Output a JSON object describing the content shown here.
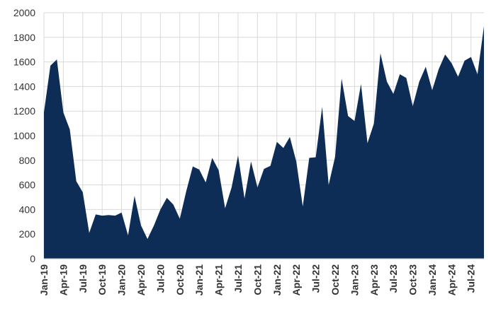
{
  "chart_data": {
    "type": "area",
    "title": "",
    "xlabel": "",
    "ylabel": "",
    "ylim": [
      0,
      2000
    ],
    "yticks": [
      0,
      200,
      400,
      600,
      800,
      1000,
      1200,
      1400,
      1600,
      1800,
      2000
    ],
    "grid": true,
    "legend": "none",
    "fill_color": "#0d2d57",
    "x_tick_labels": [
      "Jan-19",
      "Apr-19",
      "Jul-19",
      "Oct-19",
      "Jan-20",
      "Apr-20",
      "Jul-20",
      "Oct-20",
      "Jan-21",
      "Apr-21",
      "Jul-21",
      "Oct-21",
      "Jan-22",
      "Apr-22",
      "Jul-22",
      "Oct-22",
      "Jan-23",
      "Apr-23",
      "Jul-23",
      "Oct-23",
      "Jan-24",
      "Apr-24",
      "Jul-24"
    ],
    "x": [
      "Jan-19",
      "Feb-19",
      "Mar-19",
      "Apr-19",
      "May-19",
      "Jun-19",
      "Jul-19",
      "Aug-19",
      "Sep-19",
      "Oct-19",
      "Nov-19",
      "Dec-19",
      "Jan-20",
      "Feb-20",
      "Mar-20",
      "Apr-20",
      "May-20",
      "Jun-20",
      "Jul-20",
      "Aug-20",
      "Sep-20",
      "Oct-20",
      "Nov-20",
      "Dec-20",
      "Jan-21",
      "Feb-21",
      "Mar-21",
      "Apr-21",
      "May-21",
      "Jun-21",
      "Jul-21",
      "Aug-21",
      "Sep-21",
      "Oct-21",
      "Nov-21",
      "Dec-21",
      "Jan-22",
      "Feb-22",
      "Mar-22",
      "Apr-22",
      "May-22",
      "Jun-22",
      "Jul-22",
      "Aug-22",
      "Sep-22",
      "Oct-22",
      "Nov-22",
      "Dec-22",
      "Jan-23",
      "Feb-23",
      "Mar-23",
      "Apr-23",
      "May-23",
      "Jun-23",
      "Jul-23",
      "Aug-23",
      "Sep-23",
      "Oct-23",
      "Nov-23",
      "Dec-23",
      "Jan-24",
      "Feb-24",
      "Mar-24",
      "Apr-24",
      "May-24",
      "Jun-24",
      "Jul-24",
      "Aug-24",
      "Sep-24"
    ],
    "values": [
      1190,
      1570,
      1620,
      1190,
      1050,
      630,
      540,
      210,
      360,
      350,
      355,
      350,
      375,
      190,
      510,
      270,
      160,
      270,
      400,
      495,
      440,
      325,
      550,
      750,
      725,
      620,
      820,
      720,
      410,
      580,
      840,
      490,
      790,
      580,
      730,
      755,
      950,
      900,
      990,
      790,
      425,
      820,
      825,
      1235,
      600,
      830,
      1465,
      1160,
      1120,
      1420,
      940,
      1100,
      1670,
      1440,
      1340,
      1500,
      1470,
      1240,
      1440,
      1560,
      1370,
      1540,
      1660,
      1590,
      1480,
      1610,
      1640,
      1500,
      1890
    ]
  }
}
